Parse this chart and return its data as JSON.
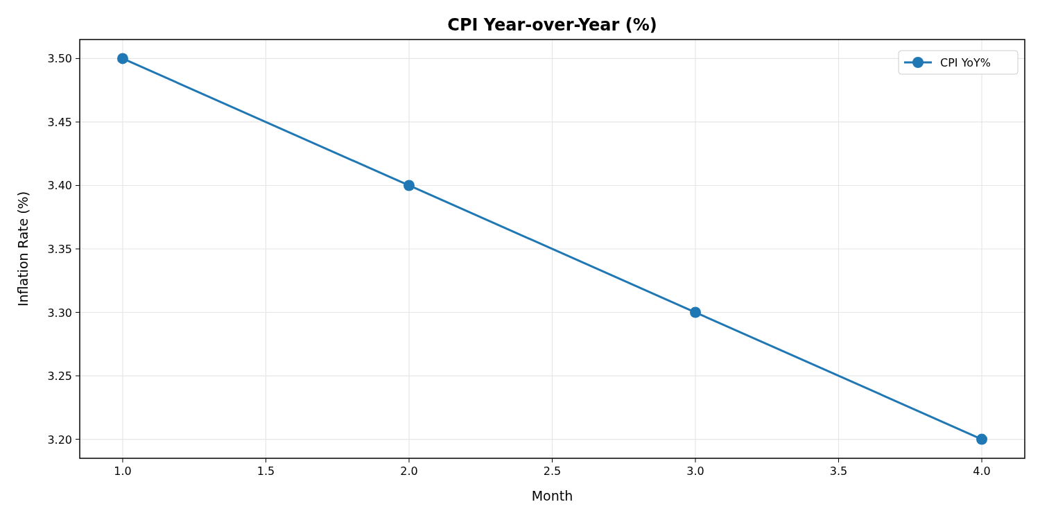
{
  "chart_data": {
    "type": "line",
    "title": "CPI Year-over-Year (%)",
    "xlabel": "Month",
    "ylabel": "Inflation Rate (%)",
    "x": [
      1,
      2,
      3,
      4
    ],
    "series": [
      {
        "name": "CPI YoY%",
        "color": "#1f77b4",
        "values": [
          3.5,
          3.4,
          3.3,
          3.2
        ]
      }
    ],
    "xlim": [
      0.85,
      4.15
    ],
    "xticks": [
      {
        "value": 1,
        "label": "1.0"
      },
      {
        "value": 1.5,
        "label": "1.5"
      },
      {
        "value": 2,
        "label": "2.0"
      },
      {
        "value": 2.5,
        "label": "2.5"
      },
      {
        "value": 3,
        "label": "3.0"
      },
      {
        "value": 3.5,
        "label": "3.5"
      },
      {
        "value": 4,
        "label": "4.0"
      }
    ],
    "ylim": [
      3.185,
      3.515
    ],
    "yticks": [
      {
        "value": 3.2,
        "label": "3.20"
      },
      {
        "value": 3.25,
        "label": "3.25"
      },
      {
        "value": 3.3,
        "label": "3.30"
      },
      {
        "value": 3.35,
        "label": "3.35"
      },
      {
        "value": 3.4,
        "label": "3.40"
      },
      {
        "value": 3.45,
        "label": "3.45"
      },
      {
        "value": 3.5,
        "label": "3.50"
      }
    ],
    "grid": true,
    "legend": "top right",
    "marker": "circle",
    "line_style": "solid"
  }
}
